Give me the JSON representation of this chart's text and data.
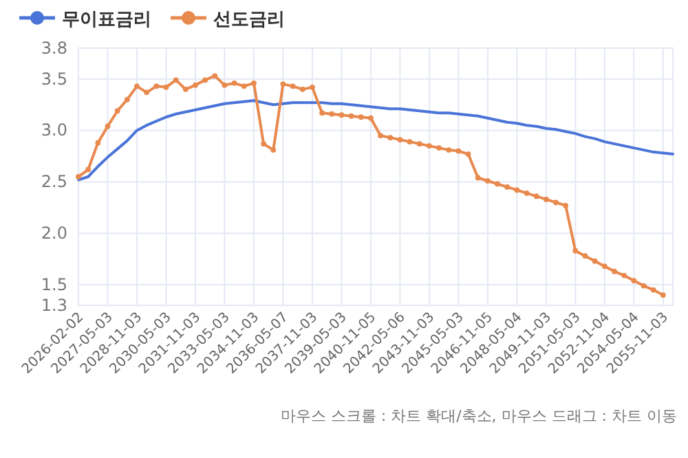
{
  "chart_data": {
    "type": "line",
    "categories": [
      "2026-02-02",
      null,
      null,
      "2027-05-03",
      null,
      null,
      "2028-11-03",
      null,
      null,
      "2030-05-03",
      null,
      null,
      "2031-11-03",
      null,
      null,
      "2033-05-03",
      null,
      null,
      "2034-11-03",
      null,
      null,
      "2036-05-07",
      null,
      null,
      "2037-11-03",
      null,
      null,
      "2039-05-03",
      null,
      null,
      "2040-11-05",
      null,
      null,
      "2042-05-06",
      null,
      null,
      "2043-11-03",
      null,
      null,
      "2045-05-03",
      null,
      null,
      "2046-11-05",
      null,
      null,
      "2048-05-04",
      null,
      null,
      "2049-11-03",
      null,
      null,
      "2051-05-03",
      null,
      null,
      "2052-11-04",
      null,
      null,
      "2054-05-04",
      null,
      null,
      "2055-11-03",
      null
    ],
    "series": [
      {
        "name": "무이표금리",
        "color": "#4a74d8",
        "marker": "none",
        "values": [
          2.52,
          2.55,
          2.65,
          2.74,
          2.82,
          2.9,
          3.0,
          3.05,
          3.09,
          3.13,
          3.16,
          3.18,
          3.2,
          3.22,
          3.24,
          3.26,
          3.27,
          3.28,
          3.29,
          3.27,
          3.25,
          3.26,
          3.27,
          3.27,
          3.27,
          3.27,
          3.26,
          3.26,
          3.25,
          3.24,
          3.23,
          3.22,
          3.21,
          3.21,
          3.2,
          3.19,
          3.18,
          3.17,
          3.17,
          3.16,
          3.15,
          3.14,
          3.12,
          3.1,
          3.08,
          3.07,
          3.05,
          3.04,
          3.02,
          3.01,
          2.99,
          2.97,
          2.94,
          2.92,
          2.89,
          2.87,
          2.85,
          2.83,
          2.81,
          2.79,
          2.78,
          2.77
        ]
      },
      {
        "name": "선도금리",
        "color": "#e8894e",
        "marker": "circle",
        "values": [
          2.55,
          2.62,
          2.88,
          3.04,
          3.19,
          3.3,
          3.43,
          3.37,
          3.43,
          3.42,
          3.49,
          3.4,
          3.44,
          3.49,
          3.53,
          3.44,
          3.46,
          3.43,
          3.46,
          2.87,
          2.81,
          3.45,
          3.43,
          3.4,
          3.42,
          3.17,
          3.16,
          3.15,
          3.14,
          3.13,
          3.12,
          2.95,
          2.93,
          2.91,
          2.89,
          2.87,
          2.85,
          2.83,
          2.81,
          2.8,
          2.77,
          2.54,
          2.51,
          2.48,
          2.45,
          2.42,
          2.39,
          2.36,
          2.33,
          2.3,
          2.27,
          1.83,
          1.78,
          1.73,
          1.68,
          1.63,
          1.59,
          1.54,
          1.49,
          1.45,
          1.4,
          null
        ]
      }
    ],
    "ylim": [
      1.3,
      3.8
    ],
    "yticks": [
      1.3,
      1.5,
      {
        "value": 2,
        "label": "2.0"
      },
      2.5,
      {
        "value": 3,
        "label": "3.0"
      },
      3.5,
      3.8
    ],
    "grid": true,
    "legend": "top left",
    "annotations": [
      "마우스 스크롤 : 차트 확대/축소, 마우스 드래그 : 차트 이동"
    ]
  }
}
